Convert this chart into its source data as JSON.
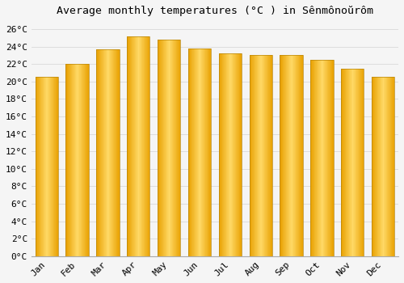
{
  "months": [
    "Jan",
    "Feb",
    "Mar",
    "Apr",
    "May",
    "Jun",
    "Jul",
    "Aug",
    "Sep",
    "Oct",
    "Nov",
    "Dec"
  ],
  "temperatures": [
    20.5,
    22.0,
    23.7,
    25.2,
    24.8,
    23.8,
    23.2,
    23.0,
    23.0,
    22.5,
    21.5,
    20.5
  ],
  "bar_color_light": "#FFD966",
  "bar_color_mid": "#FFC125",
  "bar_color_dark": "#E8A000",
  "bar_edge_color": "#B8860B",
  "title": "Average monthly temperatures (°C ) in Sênmônoŭrôm",
  "ylim": [
    0,
    27
  ],
  "ytick_step": 2,
  "background_color": "#f5f5f5",
  "plot_bg_color": "#f0f0f0",
  "grid_color": "#dddddd",
  "title_fontsize": 9.5,
  "tick_fontsize": 8,
  "font_family": "monospace"
}
